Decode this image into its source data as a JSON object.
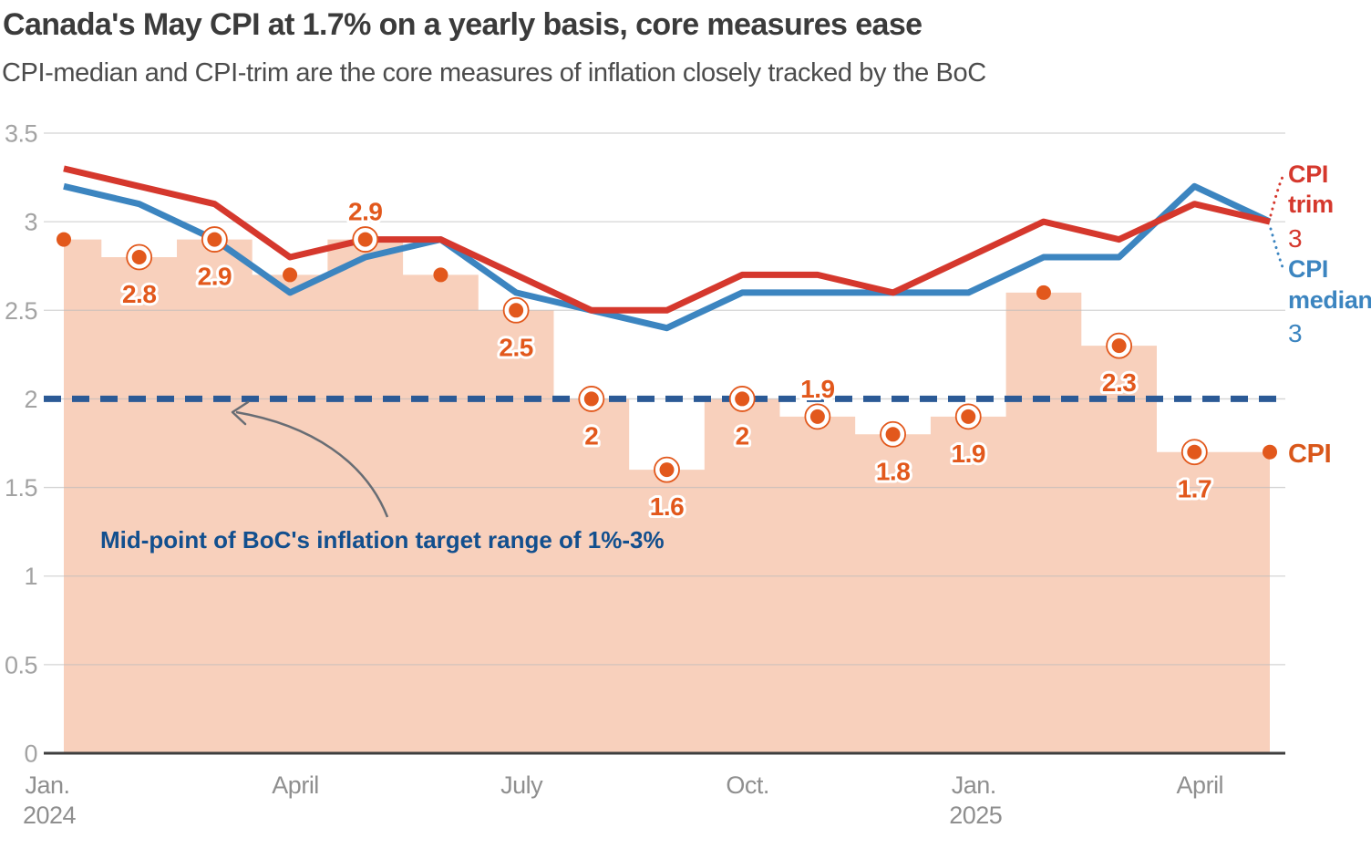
{
  "header": {
    "title": "Canada's May CPI at 1.7% on a yearly basis, core measures ease",
    "subtitle": "CPI-median and CPI-trim are the core measures of inflation closely tracked by the BoC"
  },
  "chart_data": {
    "type": "mixed-area-line-scatter",
    "x_months": [
      "Jan 2024",
      "Feb 2024",
      "Mar 2024",
      "Apr 2024",
      "May 2024",
      "Jun 2024",
      "Jul 2024",
      "Aug 2024",
      "Sep 2024",
      "Oct 2024",
      "Nov 2024",
      "Dec 2024",
      "Jan 2025",
      "Feb 2025",
      "Mar 2025",
      "Apr 2025",
      "May 2025"
    ],
    "series": [
      {
        "name": "CPI",
        "kind": "area+scatter",
        "values": [
          2.9,
          2.8,
          2.9,
          2.7,
          2.9,
          2.7,
          2.5,
          2.0,
          1.6,
          2.0,
          1.9,
          1.8,
          1.9,
          2.6,
          2.3,
          1.7,
          1.7
        ],
        "point_labels": [
          null,
          "2.8",
          "2.9",
          null,
          "2.9",
          null,
          "2.5",
          "2",
          "1.6",
          "2",
          "1.9",
          "1.8",
          "1.9",
          null,
          "2.3",
          "1.7",
          null
        ],
        "label_positions": [
          null,
          "below",
          "below",
          null,
          "above",
          null,
          "below",
          "below",
          "below",
          "below",
          "above",
          "below",
          "below",
          null,
          "below",
          "below",
          null
        ]
      },
      {
        "name": "CPI trim",
        "kind": "line",
        "values": [
          3.3,
          3.2,
          3.1,
          2.8,
          2.9,
          2.9,
          2.7,
          2.5,
          2.5,
          2.7,
          2.7,
          2.6,
          2.8,
          3.0,
          2.9,
          3.1,
          3.0
        ]
      },
      {
        "name": "CPI median",
        "kind": "line",
        "values": [
          3.2,
          3.1,
          2.9,
          2.6,
          2.8,
          2.9,
          2.6,
          2.5,
          2.4,
          2.6,
          2.6,
          2.6,
          2.6,
          2.8,
          2.8,
          3.2,
          3.0
        ]
      }
    ],
    "ylim": [
      0,
      3.5
    ],
    "yticks": [
      "0",
      "0.5",
      "1",
      "1.5",
      "2",
      "2.5",
      "3",
      "3.5"
    ],
    "xticks": [
      {
        "pos": 0,
        "line1": "Jan.",
        "line2": "2024"
      },
      {
        "pos": 3,
        "line1": "April",
        "line2": null
      },
      {
        "pos": 6,
        "line1": "July",
        "line2": null
      },
      {
        "pos": 9,
        "line1": "Oct.",
        "line2": null
      },
      {
        "pos": 12,
        "line1": "Jan.",
        "line2": "2025"
      },
      {
        "pos": 15,
        "line1": "April",
        "line2": null
      }
    ],
    "target_line": {
      "value": 2,
      "annotation": "Mid-point of BoC's inflation target range of 1%-3%"
    },
    "grid": true,
    "legend_position": "right",
    "colors": {
      "cpi_dot": "#e2581c",
      "cpi_area": "#f8d0bc",
      "trim_line": "#d5382d",
      "median_line": "#3c85c0",
      "target_dash": "#2b5a96",
      "annotation_text": "#124f8e"
    }
  },
  "legend": {
    "trim_line1": "CPI",
    "trim_line2": "trim",
    "trim_value": "3",
    "median_line1": "CPI",
    "median_line2": "median",
    "median_value": "3",
    "cpi_label": "CPI"
  }
}
